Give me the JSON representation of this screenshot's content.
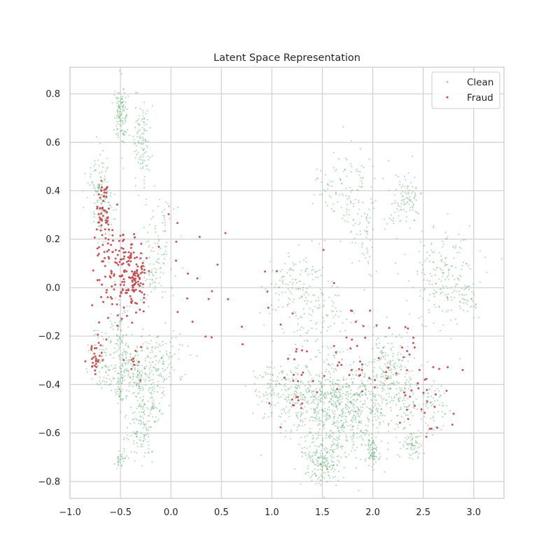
{
  "chart_data": {
    "type": "scatter",
    "title": "Latent Space Representation",
    "xlabel": "",
    "ylabel": "",
    "xlim": [
      -1.0,
      3.3
    ],
    "ylim": [
      -0.87,
      0.91
    ],
    "x_ticks": [
      -1.0,
      -0.5,
      0.0,
      0.5,
      1.0,
      1.5,
      2.0,
      2.5,
      3.0
    ],
    "x_tick_labels": [
      "−1.0",
      "−0.5",
      "0.0",
      "0.5",
      "1.0",
      "1.5",
      "2.0",
      "2.5",
      "3.0"
    ],
    "y_ticks": [
      0.8,
      0.6,
      0.4,
      0.2,
      0.0,
      -0.2,
      -0.4,
      -0.6,
      -0.8
    ],
    "y_tick_labels": [
      "0.8",
      "0.6",
      "0.4",
      "0.2",
      "0.0",
      "−0.2",
      "−0.4",
      "−0.6",
      "−0.8"
    ],
    "grid": true,
    "legend_position": "top-right",
    "series": [
      {
        "name": "Clean",
        "color": "#55a868",
        "clusters": [
          {
            "cx": -0.5,
            "cy": 0.71,
            "sx": 0.03,
            "sy": 0.06,
            "n": 120
          },
          {
            "cx": -0.28,
            "cy": 0.6,
            "sx": 0.05,
            "sy": 0.08,
            "n": 110
          },
          {
            "cx": -0.72,
            "cy": 0.43,
            "sx": 0.05,
            "sy": 0.07,
            "n": 90
          },
          {
            "cx": -0.65,
            "cy": 0.3,
            "sx": 0.05,
            "sy": 0.06,
            "n": 60
          },
          {
            "cx": -0.12,
            "cy": 0.12,
            "sx": 0.08,
            "sy": 0.07,
            "n": 70
          },
          {
            "cx": -0.08,
            "cy": 0.3,
            "sx": 0.06,
            "sy": 0.04,
            "n": 20
          },
          {
            "cx": -0.2,
            "cy": 0.03,
            "sx": 0.1,
            "sy": 0.05,
            "n": 40
          },
          {
            "cx": -0.5,
            "cy": -0.22,
            "sx": 0.05,
            "sy": 0.1,
            "n": 100
          },
          {
            "cx": -0.33,
            "cy": -0.35,
            "sx": 0.1,
            "sy": 0.08,
            "n": 180
          },
          {
            "cx": -0.1,
            "cy": -0.3,
            "sx": 0.12,
            "sy": 0.06,
            "n": 120
          },
          {
            "cx": -0.7,
            "cy": -0.28,
            "sx": 0.06,
            "sy": 0.07,
            "n": 60
          },
          {
            "cx": -0.2,
            "cy": -0.5,
            "sx": 0.07,
            "sy": 0.05,
            "n": 80
          },
          {
            "cx": -0.3,
            "cy": -0.6,
            "sx": 0.06,
            "sy": 0.05,
            "n": 80
          },
          {
            "cx": -0.5,
            "cy": -0.43,
            "sx": 0.02,
            "sy": 0.04,
            "n": 30
          },
          {
            "cx": -0.5,
            "cy": -0.71,
            "sx": 0.03,
            "sy": 0.02,
            "n": 30
          },
          {
            "cx": -0.6,
            "cy": -0.35,
            "sx": 0.04,
            "sy": 0.04,
            "n": 30
          },
          {
            "cx": 1.8,
            "cy": 0.4,
            "sx": 0.12,
            "sy": 0.1,
            "n": 100
          },
          {
            "cx": 1.9,
            "cy": 0.2,
            "sx": 0.06,
            "sy": 0.1,
            "n": 40
          },
          {
            "cx": 1.55,
            "cy": 0.43,
            "sx": 0.08,
            "sy": 0.07,
            "n": 30
          },
          {
            "cx": 2.35,
            "cy": 0.37,
            "sx": 0.06,
            "sy": 0.05,
            "n": 80
          },
          {
            "cx": 2.2,
            "cy": 0.3,
            "sx": 0.05,
            "sy": 0.04,
            "n": 20
          },
          {
            "cx": 2.7,
            "cy": 0.05,
            "sx": 0.17,
            "sy": 0.1,
            "n": 200
          },
          {
            "cx": 2.95,
            "cy": -0.05,
            "sx": 0.05,
            "sy": 0.04,
            "n": 25
          },
          {
            "cx": 1.25,
            "cy": 0.0,
            "sx": 0.17,
            "sy": 0.09,
            "n": 140
          },
          {
            "cx": 1.5,
            "cy": -0.12,
            "sx": 0.12,
            "sy": 0.08,
            "n": 80
          },
          {
            "cx": 1.3,
            "cy": -0.45,
            "sx": 0.18,
            "sy": 0.08,
            "n": 250
          },
          {
            "cx": 1.6,
            "cy": -0.5,
            "sx": 0.15,
            "sy": 0.1,
            "n": 350
          },
          {
            "cx": 1.5,
            "cy": -0.72,
            "sx": 0.09,
            "sy": 0.05,
            "n": 180
          },
          {
            "cx": 1.9,
            "cy": -0.5,
            "sx": 0.15,
            "sy": 0.1,
            "n": 300
          },
          {
            "cx": 2.0,
            "cy": -0.68,
            "sx": 0.03,
            "sy": 0.03,
            "n": 70
          },
          {
            "cx": 2.15,
            "cy": -0.3,
            "sx": 0.1,
            "sy": 0.08,
            "n": 150
          },
          {
            "cx": 2.3,
            "cy": -0.45,
            "sx": 0.1,
            "sy": 0.07,
            "n": 100
          },
          {
            "cx": 2.4,
            "cy": -0.65,
            "sx": 0.05,
            "sy": 0.03,
            "n": 70
          },
          {
            "cx": 2.6,
            "cy": -0.5,
            "sx": 0.07,
            "sy": 0.06,
            "n": 60
          },
          {
            "cx": 1.0,
            "cy": -0.4,
            "sx": 0.1,
            "sy": 0.05,
            "n": 60
          }
        ]
      },
      {
        "name": "Fraud",
        "color": "#c44e52",
        "clusters": [
          {
            "cx": -0.68,
            "cy": 0.3,
            "sx": 0.04,
            "sy": 0.06,
            "n": 50
          },
          {
            "cx": -0.55,
            "cy": 0.15,
            "sx": 0.12,
            "sy": 0.08,
            "n": 60
          },
          {
            "cx": -0.4,
            "cy": 0.05,
            "sx": 0.06,
            "sy": 0.08,
            "n": 90
          },
          {
            "cx": -0.32,
            "cy": 0.02,
            "sx": 0.04,
            "sy": 0.05,
            "n": 30
          },
          {
            "cx": -0.6,
            "cy": 0.0,
            "sx": 0.08,
            "sy": 0.06,
            "n": 25
          },
          {
            "cx": -0.75,
            "cy": -0.28,
            "sx": 0.05,
            "sy": 0.04,
            "n": 30
          },
          {
            "cx": -0.4,
            "cy": -0.3,
            "sx": 0.05,
            "sy": 0.04,
            "n": 10
          },
          {
            "cx": 0.3,
            "cy": 0.05,
            "sx": 0.25,
            "sy": 0.12,
            "n": 20
          },
          {
            "cx": 1.2,
            "cy": -0.2,
            "sx": 0.2,
            "sy": 0.15,
            "n": 20
          },
          {
            "cx": 2.1,
            "cy": -0.32,
            "sx": 0.2,
            "sy": 0.08,
            "n": 40
          },
          {
            "cx": 1.8,
            "cy": -0.2,
            "sx": 0.15,
            "sy": 0.1,
            "n": 10
          },
          {
            "cx": 2.6,
            "cy": -0.45,
            "sx": 0.15,
            "sy": 0.08,
            "n": 25
          },
          {
            "cx": 1.3,
            "cy": -0.45,
            "sx": 0.15,
            "sy": 0.05,
            "n": 15
          }
        ]
      }
    ]
  }
}
